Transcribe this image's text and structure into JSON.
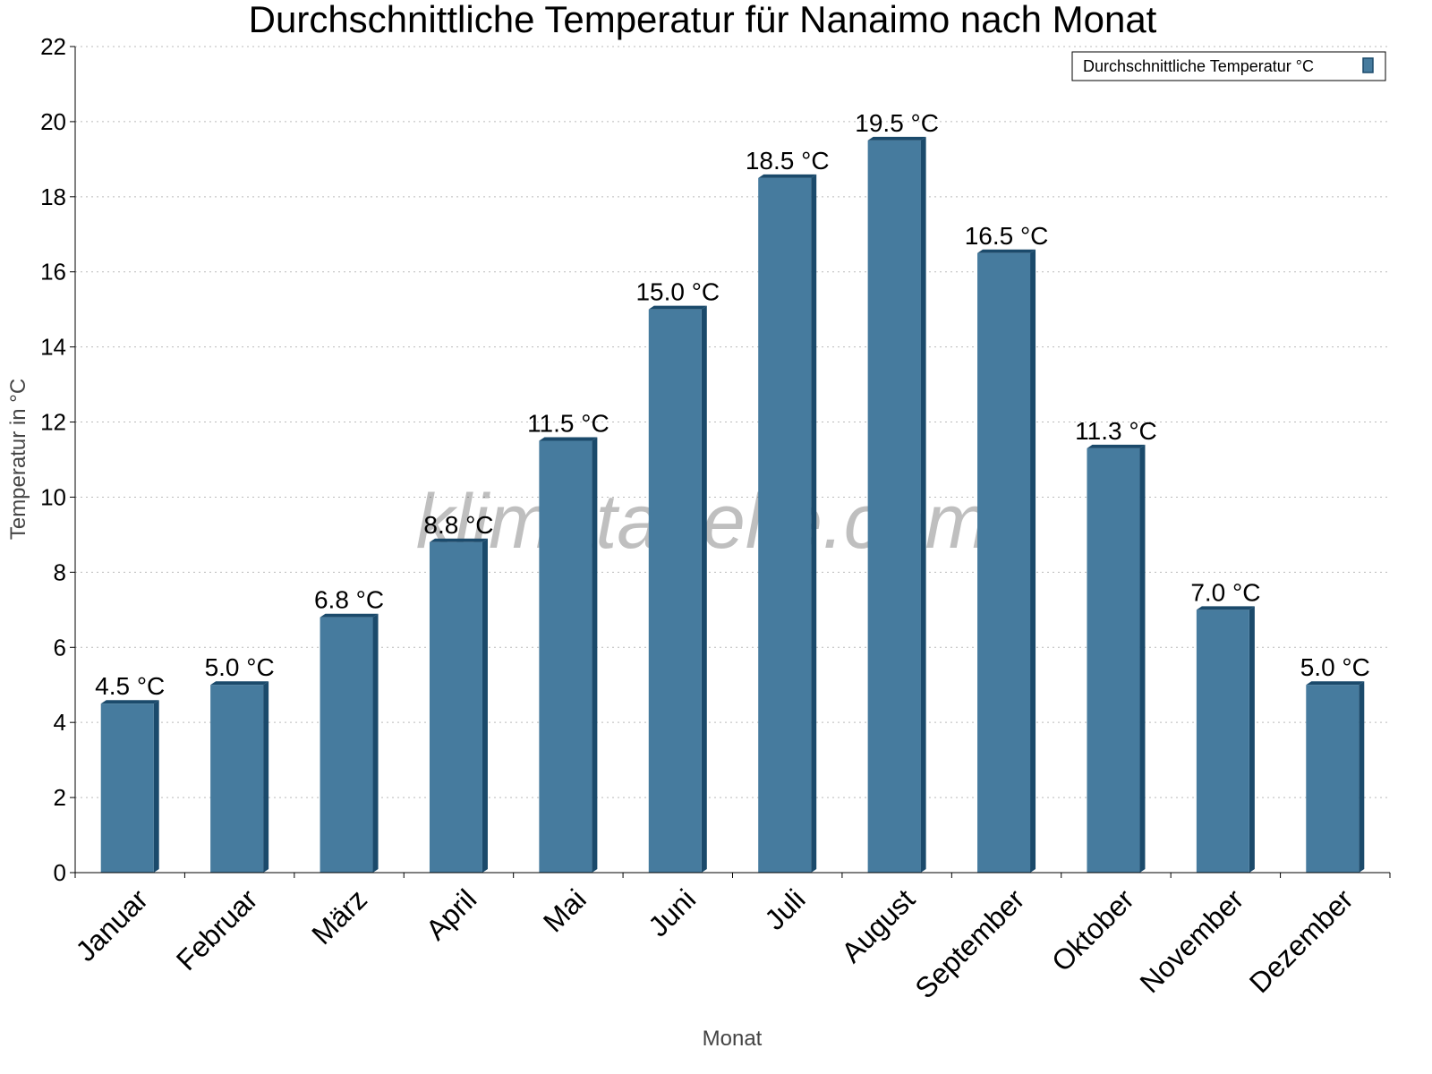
{
  "chart_data": {
    "type": "bar",
    "title": "Durchschnittliche Temperatur für Nanaimo nach Monat",
    "xlabel": "Monat",
    "ylabel": "Temperatur in °C",
    "ylim": [
      0,
      22
    ],
    "yticks": [
      "0",
      "2",
      "4",
      "6",
      "8",
      "10",
      "12",
      "14",
      "16",
      "18",
      "20",
      "22"
    ],
    "grid": true,
    "legend_position": "top-right",
    "categories": [
      "Januar",
      "Februar",
      "März",
      "April",
      "Mai",
      "Juni",
      "Juli",
      "August",
      "September",
      "Oktober",
      "November",
      "Dezember"
    ],
    "series": [
      {
        "name": "Durchschnittliche Temperatur °C",
        "values": [
          4.5,
          5.0,
          6.8,
          8.8,
          11.5,
          15.0,
          18.5,
          19.5,
          16.5,
          11.3,
          7.0,
          5.0
        ],
        "labels": [
          "4.5 °C",
          "5.0 °C",
          "6.8 °C",
          "8.8 °C",
          "11.5 °C",
          "15.0 °C",
          "18.5 °C",
          "19.5 °C",
          "16.5 °C",
          "11.3 °C",
          "7.0 °C",
          "5.0 °C"
        ],
        "color": "#467b9e",
        "side_color": "#1b4a6b"
      }
    ],
    "watermark": "klimatabelle.com"
  }
}
